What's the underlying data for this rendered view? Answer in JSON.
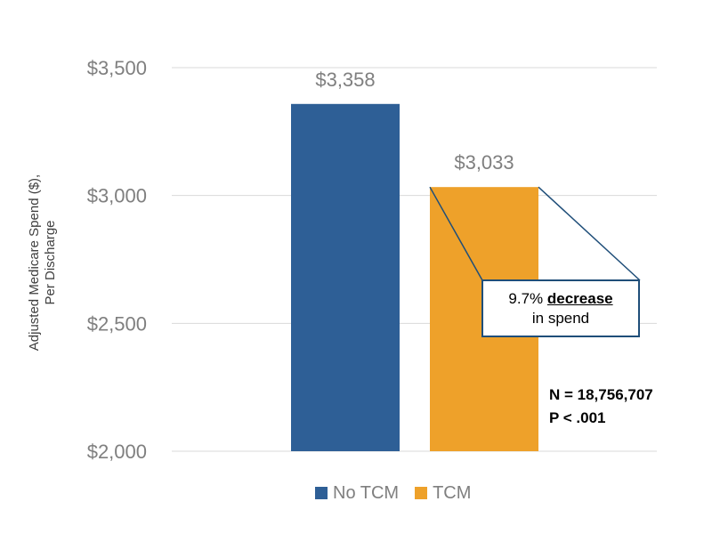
{
  "chart_data": {
    "type": "bar",
    "categories": [
      "No TCM",
      "TCM"
    ],
    "values": [
      3358,
      3033
    ],
    "data_labels": [
      "$3,358",
      "$3,033"
    ],
    "ylabel_line1": "Adjusted Medicare Spend ($),",
    "ylabel_line2": "Per Discharge",
    "ylim": [
      2000,
      3500
    ],
    "yticks": [
      2000,
      2500,
      3000,
      3500
    ],
    "ytick_labels": [
      "$2,000",
      "$2,500",
      "$3,000",
      "$3,500"
    ],
    "grid": true,
    "legend_position": "bottom",
    "legend": [
      "No TCM",
      "TCM"
    ],
    "colors": [
      "#2e5f96",
      "#eea12a"
    ],
    "annotation": {
      "prefix": "9.7%",
      "bold_word": "decrease",
      "line2": "in spend"
    },
    "stats": {
      "n": "N = 18,756,707",
      "p": "P < .001"
    }
  }
}
